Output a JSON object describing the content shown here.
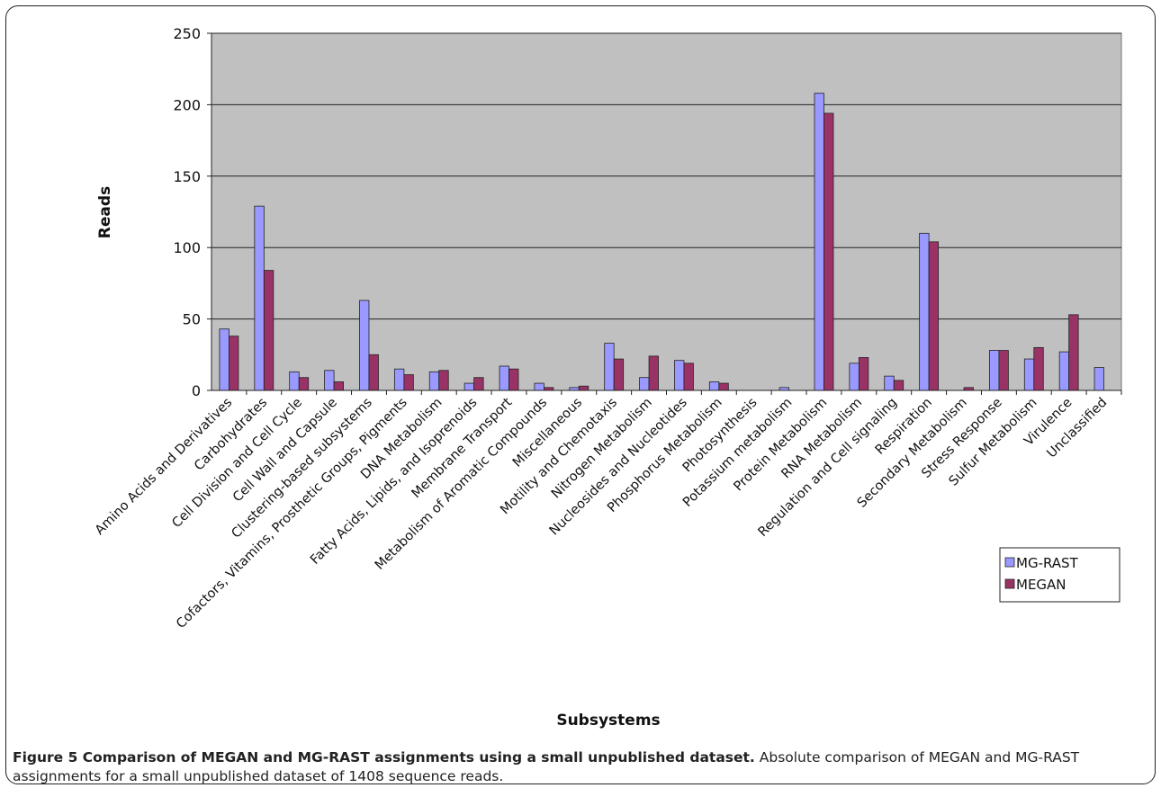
{
  "chart_data": {
    "type": "bar",
    "title": "",
    "xlabel": "Subsystems",
    "ylabel": "Reads",
    "ylim": [
      0,
      250
    ],
    "yticks": [
      0,
      50,
      100,
      150,
      200,
      250
    ],
    "grid": true,
    "legend_position": "bottom-right",
    "categories": [
      "Amino Acids and Derivatives",
      "Carbohydrates",
      "Cell Division and Cell Cycle",
      "Cell Wall and Capsule",
      "Clustering-based subsystems",
      "Cofactors, Vitamins, Prosthetic Groups, Pigments",
      "DNA Metabolism",
      "Fatty Acids, Lipids, and Isoprenoids",
      "Membrane Transport",
      "Metabolism of Aromatic Compounds",
      "Miscellaneous",
      "Motility and Chemotaxis",
      "Nitrogen Metabolism",
      "Nucleosides and Nucleotides",
      "Phosphorus Metabolism",
      "Photosynthesis",
      "Potassium metabolism",
      "Protein Metabolism",
      "RNA Metabolism",
      "Regulation and Cell signaling",
      "Respiration",
      "Secondary Metabolism",
      "Stress Response",
      "Sulfur Metabolism",
      "Virulence",
      "Unclassified"
    ],
    "series": [
      {
        "name": "MG-RAST",
        "color": "#9999ff",
        "values": [
          43,
          129,
          13,
          14,
          63,
          15,
          13,
          5,
          17,
          5,
          2,
          33,
          9,
          21,
          6,
          0,
          2,
          208,
          19,
          10,
          110,
          0,
          28,
          22,
          27,
          16
        ]
      },
      {
        "name": "MEGAN",
        "color": "#993366",
        "values": [
          38,
          84,
          9,
          6,
          25,
          11,
          14,
          9,
          15,
          2,
          3,
          22,
          24,
          19,
          5,
          0,
          0,
          194,
          23,
          7,
          104,
          2,
          28,
          30,
          53,
          0
        ]
      }
    ],
    "plot_background": "#c0c0c0"
  },
  "caption": {
    "label": "Figure 5 Comparison of MEGAN and MG-RAST assignments using a small unpublished dataset.",
    "text": " Absolute comparison of MEGAN and MG-RAST assignments for a small unpublished dataset of 1408 sequence reads."
  }
}
